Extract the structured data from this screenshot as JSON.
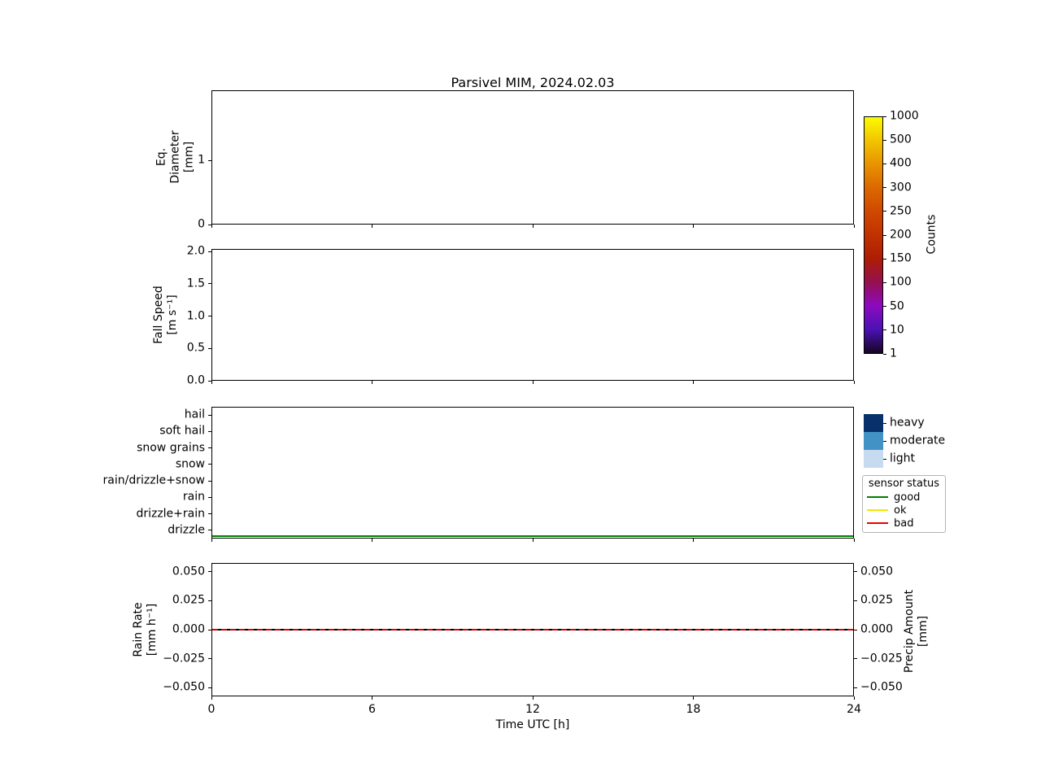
{
  "title": "Parsivel MIM, 2024.02.03",
  "xaxis": {
    "label": "Time UTC [h]"
  },
  "panel1": {
    "ylabel_lines": [
      "Eq.",
      "Diameter",
      "[mm]"
    ]
  },
  "panel2": {
    "ylabel_lines": [
      "Fall Speed",
      "[m s⁻¹]"
    ]
  },
  "panel4": {
    "ylabel_lines": [
      "Rain Rate",
      "[mm h⁻¹]"
    ],
    "ylabel_right_lines": [
      "Precip Amount",
      "[mm]"
    ]
  },
  "axes": {
    "panel1_yticks": {
      "values": [
        0,
        1
      ],
      "labels": [
        "0",
        "1"
      ]
    },
    "panel2_yticks": {
      "values": [
        0,
        0.5,
        1,
        1.5,
        2
      ],
      "labels": [
        "0.0",
        "0.5",
        "1.0",
        "1.5",
        "2.0"
      ]
    },
    "panel3_categories": [
      "hail",
      "soft hail",
      "snow grains",
      "snow",
      "rain/drizzle+snow",
      "rain",
      "drizzle+rain",
      "drizzle"
    ],
    "panel4_yticks": {
      "values": [
        0.05,
        0.025,
        0,
        -0.025,
        -0.05
      ],
      "labels": [
        "0.050",
        "0.025",
        "0.000",
        "−0.025",
        "−0.050"
      ]
    },
    "xticks": {
      "values": [
        0,
        6,
        12,
        18,
        24
      ],
      "labels": [
        "0",
        "6",
        "12",
        "18",
        "24"
      ]
    },
    "colorbar_ticks": [
      "1000",
      "500",
      "400",
      "300",
      "250",
      "200",
      "150",
      "100",
      "50",
      "10",
      "1"
    ]
  },
  "colorbar": {
    "label": "Counts",
    "colors": [
      "#fbfb00",
      "#f2c400",
      "#e89300",
      "#dc6800",
      "#d04800",
      "#c13200",
      "#ad1d04",
      "#951050",
      "#8c0ac0",
      "#4a12b4",
      "#150522"
    ]
  },
  "intensity_legend": {
    "items": [
      {
        "label": "heavy",
        "color": "#08306b"
      },
      {
        "label": "moderate",
        "color": "#4292c6"
      },
      {
        "label": "light",
        "color": "#c6dbef"
      }
    ]
  },
  "status_legend": {
    "title": "sensor status",
    "items": [
      {
        "label": "good",
        "color": "#008000"
      },
      {
        "label": "ok",
        "color": "#f5e600"
      },
      {
        "label": "bad",
        "color": "#ee0000"
      }
    ]
  },
  "colors": {
    "rain_rate_line": "#dd0000",
    "precip_amount_line": "#000000",
    "status_good_line": "#008000"
  },
  "chart_data": [
    {
      "type": "heatmap",
      "title": "Parsivel MIM, 2024.02.03",
      "ylabel": "Eq. Diameter [mm]",
      "x_range": [
        0,
        24
      ],
      "yticks": [
        0,
        1
      ],
      "colorbar_label": "Counts",
      "colorbar_levels": [
        1,
        10,
        50,
        100,
        150,
        200,
        250,
        300,
        400,
        500,
        1000
      ],
      "values": [],
      "note": "panel empty — no counts recorded on this day"
    },
    {
      "type": "heatmap",
      "ylabel": "Fall Speed [m s⁻¹]",
      "x_range": [
        0,
        24
      ],
      "yticks": [
        0.0,
        0.5,
        1.0,
        1.5,
        2.0
      ],
      "values": [],
      "note": "panel empty — no counts recorded on this day"
    },
    {
      "type": "line",
      "name": "precipitation type / sensor status",
      "categories_y": [
        "hail",
        "soft hail",
        "snow grains",
        "snow",
        "rain/drizzle+snow",
        "rain",
        "drizzle+rain",
        "drizzle"
      ],
      "x_range": [
        0,
        24
      ],
      "series": [
        {
          "name": "sensor status: good",
          "color": "#008000",
          "x": [
            0,
            24
          ],
          "y": "constant baseline below drizzle"
        }
      ],
      "legend_intensity": [
        "heavy",
        "moderate",
        "light"
      ],
      "legend_status": {
        "title": "sensor status",
        "entries": [
          "good",
          "ok",
          "bad"
        ]
      }
    },
    {
      "type": "line",
      "ylabel": "Rain Rate [mm h⁻¹]",
      "ylabel_right": "Precip Amount [mm]",
      "xlabel": "Time UTC [h]",
      "x_range": [
        0,
        24
      ],
      "ylim": [
        -0.05,
        0.05
      ],
      "xticks": [
        0,
        6,
        12,
        18,
        24
      ],
      "series": [
        {
          "name": "Rain Rate",
          "color": "#dd0000",
          "style": "solid",
          "x": [
            0,
            24
          ],
          "values": [
            0.0,
            0.0
          ]
        },
        {
          "name": "Precip Amount",
          "color": "#000000",
          "style": "dashed",
          "x": [
            0,
            24
          ],
          "values": [
            0.0,
            0.0
          ]
        }
      ]
    }
  ]
}
